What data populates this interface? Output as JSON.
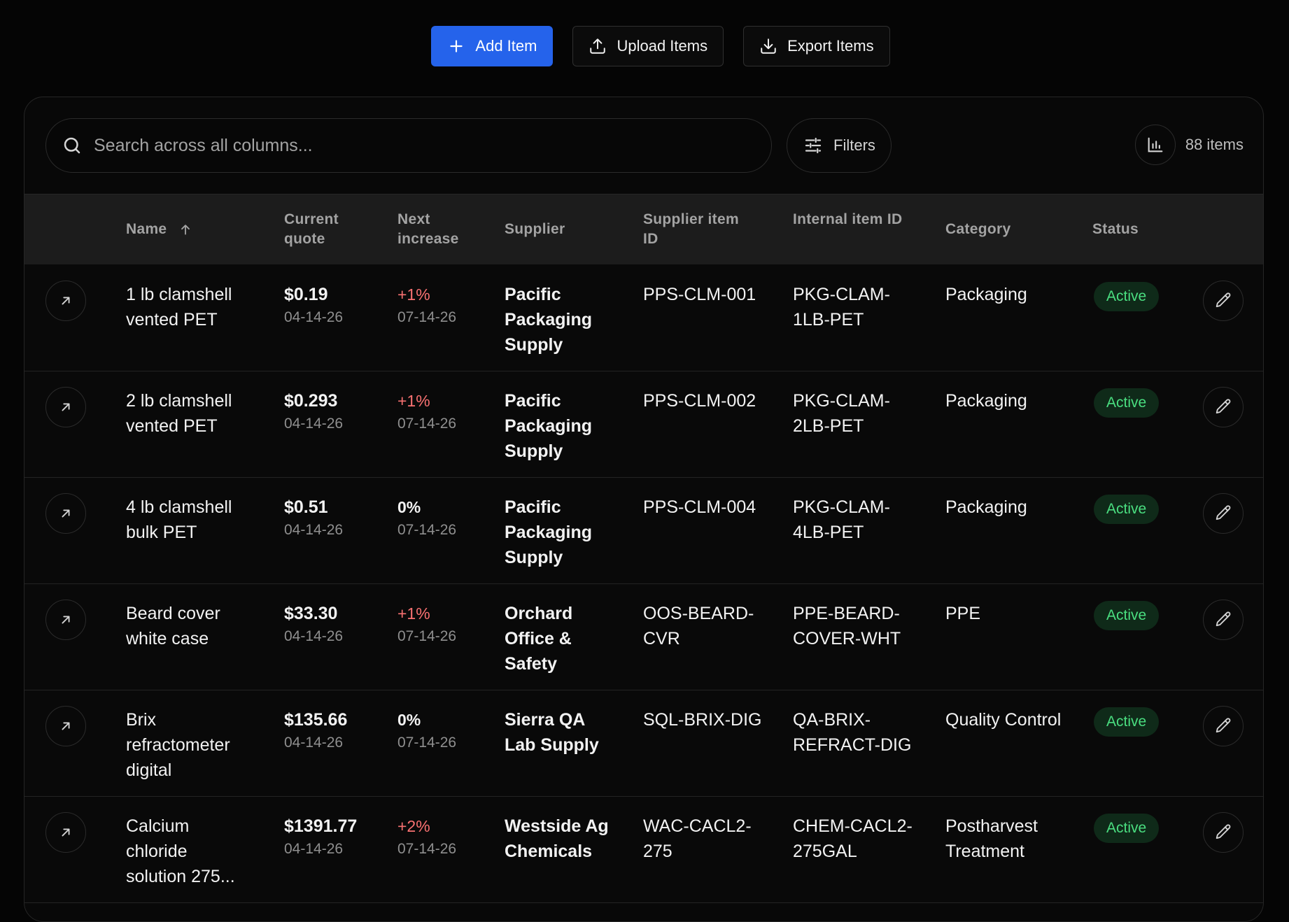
{
  "toolbar": {
    "add_label": "Add Item",
    "upload_label": "Upload Items",
    "export_label": "Export Items"
  },
  "search": {
    "placeholder": "Search across all columns..."
  },
  "filters": {
    "label": "Filters"
  },
  "item_count": "88 items",
  "columns": {
    "name": "Name",
    "current_quote": "Current quote",
    "next_increase": "Next increase",
    "supplier": "Supplier",
    "supplier_item_id": "Supplier item ID",
    "internal_item_id": "Internal item ID",
    "category": "Category",
    "status": "Status"
  },
  "colors": {
    "accent": "#2563eb",
    "active_badge": "#4ade80",
    "increase": "#f87171"
  },
  "rows": [
    {
      "name": "1 lb clamshell vented PET",
      "quote": "$0.19",
      "quote_date": "04-14-26",
      "increase": "+1%",
      "increase_date": "07-14-26",
      "supplier": "Pacific Packaging Supply",
      "supplier_item_id": "PPS-CLM-001",
      "internal_item_id": "PKG-CLAM-1LB-PET",
      "category": "Packaging",
      "status": "Active"
    },
    {
      "name": "2 lb clamshell vented PET",
      "quote": "$0.293",
      "quote_date": "04-14-26",
      "increase": "+1%",
      "increase_date": "07-14-26",
      "supplier": "Pacific Packaging Supply",
      "supplier_item_id": "PPS-CLM-002",
      "internal_item_id": "PKG-CLAM-2LB-PET",
      "category": "Packaging",
      "status": "Active"
    },
    {
      "name": "4 lb clamshell bulk PET",
      "quote": "$0.51",
      "quote_date": "04-14-26",
      "increase": "0%",
      "increase_date": "07-14-26",
      "supplier": "Pacific Packaging Supply",
      "supplier_item_id": "PPS-CLM-004",
      "internal_item_id": "PKG-CLAM-4LB-PET",
      "category": "Packaging",
      "status": "Active"
    },
    {
      "name": "Beard cover white case",
      "quote": "$33.30",
      "quote_date": "04-14-26",
      "increase": "+1%",
      "increase_date": "07-14-26",
      "supplier": "Orchard Office & Safety",
      "supplier_item_id": "OOS-BEARD-CVR",
      "internal_item_id": "PPE-BEARD-COVER-WHT",
      "category": "PPE",
      "status": "Active"
    },
    {
      "name": "Brix refractometer digital",
      "quote": "$135.66",
      "quote_date": "04-14-26",
      "increase": "0%",
      "increase_date": "07-14-26",
      "supplier": "Sierra QA Lab Supply",
      "supplier_item_id": "SQL-BRIX-DIG",
      "internal_item_id": "QA-BRIX-REFRACT-DIG",
      "category": "Quality Control",
      "status": "Active"
    },
    {
      "name": "Calcium chloride solution 275...",
      "quote": "$1391.77",
      "quote_date": "04-14-26",
      "increase": "+2%",
      "increase_date": "07-14-26",
      "supplier": "Westside Ag Chemicals",
      "supplier_item_id": "WAC-CACL2-275",
      "internal_item_id": "CHEM-CACL2-275GAL",
      "category": "Postharvest Treatment",
      "status": "Active"
    }
  ]
}
